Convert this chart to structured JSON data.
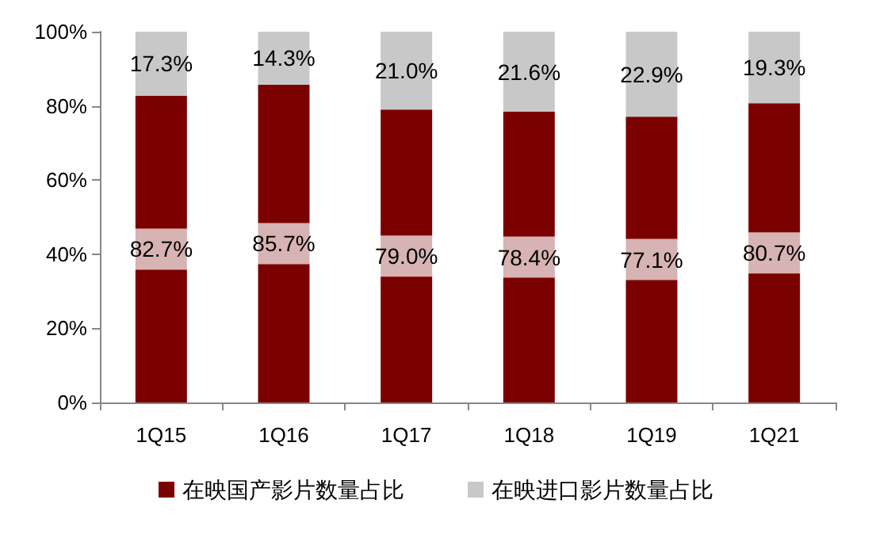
{
  "chart_data": {
    "type": "bar",
    "stacked": true,
    "categories": [
      "1Q15",
      "1Q16",
      "1Q17",
      "1Q18",
      "1Q19",
      "1Q21"
    ],
    "series": [
      {
        "name": "在映国产影片数量占比",
        "color": "#7b0000",
        "values": [
          82.7,
          85.7,
          79.0,
          78.4,
          77.1,
          80.7
        ],
        "value_labels": [
          "82.7%",
          "85.7%",
          "79.0%",
          "78.4%",
          "77.1%",
          "80.7%"
        ]
      },
      {
        "name": "在映进口影片数量占比",
        "color": "#c8c8c8",
        "values": [
          17.3,
          14.3,
          21.0,
          21.6,
          22.9,
          19.3
        ],
        "value_labels": [
          "17.3%",
          "14.3%",
          "21.0%",
          "21.6%",
          "22.9%",
          "19.3%"
        ]
      }
    ],
    "ylim": [
      0,
      100
    ],
    "yticks": [
      {
        "value": 0,
        "label": "0%"
      },
      {
        "value": 20,
        "label": "20%"
      },
      {
        "value": 40,
        "label": "40%"
      },
      {
        "value": 60,
        "label": "60%"
      },
      {
        "value": 80,
        "label": "80%"
      },
      {
        "value": 100,
        "label": "100%"
      }
    ],
    "grid": false,
    "legend": "bottom"
  }
}
